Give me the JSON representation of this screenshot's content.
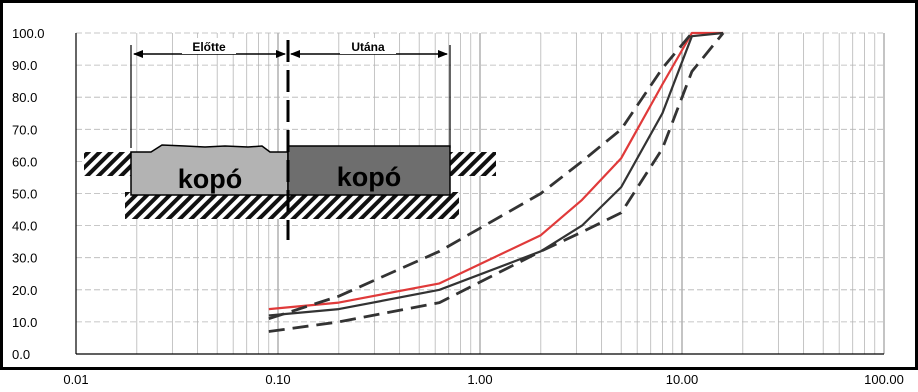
{
  "chart_data": {
    "type": "line",
    "x_scale": "log",
    "xlim": [
      0.01,
      100
    ],
    "ylim": [
      0,
      100
    ],
    "grid": true,
    "x_tick_labels": [
      "0.01",
      "0.10",
      "1.00",
      "10.00",
      "100.00"
    ],
    "y_tick_labels": [
      "0.0",
      "10.0",
      "20.0",
      "30.0",
      "40.0",
      "50.0",
      "60.0",
      "70.0",
      "80.0",
      "90.0",
      "100.0"
    ],
    "series": [
      {
        "color": "#e03a3a",
        "style": "solid",
        "x": [
          0.09,
          0.2,
          0.63,
          2.0,
          3.2,
          5.0,
          8.0,
          11.2,
          16.0
        ],
        "y": [
          14,
          16,
          22,
          37,
          48,
          61,
          84,
          100,
          100
        ]
      },
      {
        "color": "#333333",
        "style": "solid",
        "x": [
          0.09,
          0.2,
          0.63,
          2.0,
          3.2,
          5.0,
          8.0,
          11.2,
          16.0
        ],
        "y": [
          12,
          14,
          20,
          32,
          40,
          52,
          75,
          99,
          100
        ]
      },
      {
        "color": "#333333",
        "style": "dashed",
        "x": [
          0.09,
          0.2,
          0.63,
          2.0,
          3.2,
          5.0,
          8.0,
          11.2
        ],
        "y": [
          11,
          18,
          32,
          50,
          60,
          70,
          89,
          100
        ]
      },
      {
        "color": "#333333",
        "style": "dashed",
        "x": [
          0.09,
          0.2,
          0.63,
          2.0,
          3.2,
          5.0,
          8.0,
          11.2,
          16.0
        ],
        "y": [
          7,
          10,
          16,
          32,
          38,
          44,
          64,
          88,
          100
        ]
      }
    ],
    "annotations": {
      "before_label": "Előtte",
      "after_label": "Utána",
      "left_block_label": "kopó",
      "right_block_label": "kopó"
    }
  },
  "colors": {
    "grid": "#b5b5b5",
    "block_left": "#b3b3b3",
    "block_right": "#6e6e6e",
    "axis": "#000000"
  }
}
